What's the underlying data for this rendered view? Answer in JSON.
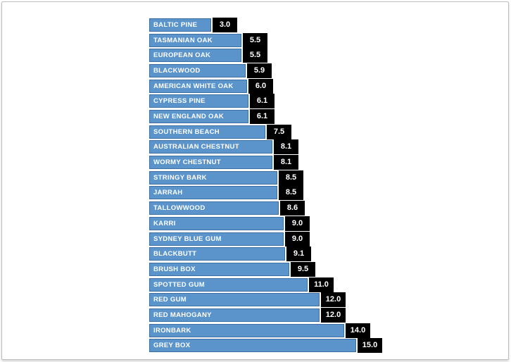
{
  "page": {
    "background": "#ffffff",
    "frame_border_color": "#bdbdbd"
  },
  "chart_data": {
    "type": "bar",
    "orientation": "horizontal",
    "title": "",
    "xlabel": "",
    "ylabel": "",
    "grid": false,
    "legend": false,
    "axes_visible": false,
    "value_label_format": "one_decimal",
    "categories": [
      "BALTIC PINE",
      "TASMANIAN OAK",
      "EUROPEAN OAK",
      "BLACKWOOD",
      "AMERICAN WHITE OAK",
      "CYPRESS PINE",
      "NEW ENGLAND OAK",
      "SOUTHERN BEACH",
      "AUSTRALIAN CHESTNUT",
      "WORMY CHESTNUT",
      "STRINGY BARK",
      "JARRAH",
      "TALLOWWOOD",
      "KARRI",
      "SYDNEY BLUE GUM",
      "BLACKBUTT",
      "BRUSH BOX",
      "SPOTTED GUM",
      "RED GUM",
      "RED MAHOGANY",
      "IRONBARK",
      "GREY BOX"
    ],
    "values": [
      3.0,
      5.5,
      5.5,
      5.9,
      6.0,
      6.1,
      6.1,
      7.5,
      8.1,
      8.1,
      8.5,
      8.5,
      8.6,
      9.0,
      9.0,
      9.1,
      9.5,
      11.0,
      12.0,
      12.0,
      14.0,
      15.0
    ],
    "value_labels": [
      "3.0",
      "5.5",
      "5.5",
      "5.9",
      "6.0",
      "6.1",
      "6.1",
      "7.5",
      "8.1",
      "8.1",
      "8.5",
      "8.5",
      "8.6",
      "9.0",
      "9.0",
      "9.1",
      "9.5",
      "11.0",
      "12.0",
      "12.0",
      "14.0",
      "15.0"
    ],
    "colors": {
      "bar_fill": "#5b94cb",
      "bar_border": "#3d6fa3",
      "bar_label_text": "#ffffff",
      "value_badge_fill": "#000000",
      "value_badge_text": "#ffffff"
    }
  }
}
